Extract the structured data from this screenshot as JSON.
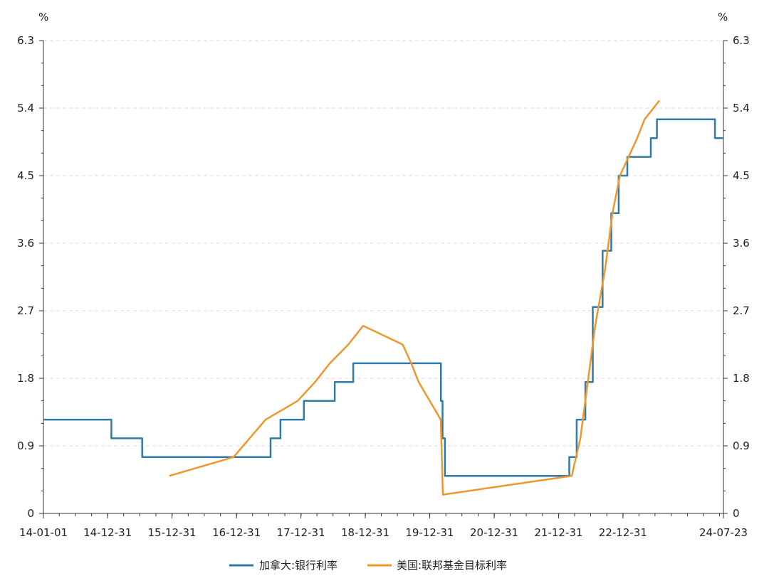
{
  "chart_data": {
    "type": "line",
    "title": "",
    "xlabel": "",
    "ylabel": "%",
    "ylabel_right": "%",
    "ylim": [
      0,
      6.3
    ],
    "yticks": [
      0,
      0.9,
      1.8,
      2.7,
      3.6,
      4.5,
      5.4,
      6.3
    ],
    "ytick_labels": [
      "0",
      "0.9",
      "1.8",
      "2.7",
      "3.6",
      "4.5",
      "5.4",
      "6.3"
    ],
    "xlim": [
      "2014-01-01",
      "2024-07-23"
    ],
    "xticks": [
      {
        "date": "2014-01-01",
        "label": "14-01-01"
      },
      {
        "date": "2014-12-31",
        "label": "14-12-31"
      },
      {
        "date": "2015-12-31",
        "label": "15-12-31"
      },
      {
        "date": "2016-12-31",
        "label": "16-12-31"
      },
      {
        "date": "2017-12-31",
        "label": "17-12-31"
      },
      {
        "date": "2018-12-31",
        "label": "18-12-31"
      },
      {
        "date": "2019-12-31",
        "label": "19-12-31"
      },
      {
        "date": "2020-12-31",
        "label": "20-12-31"
      },
      {
        "date": "2021-12-31",
        "label": "21-12-31"
      },
      {
        "date": "2022-12-31",
        "label": "22-12-31"
      },
      {
        "date": "2024-07-23",
        "label": "24-07-23"
      }
    ],
    "grid": true,
    "legend_position": "bottom",
    "series": [
      {
        "name": "加拿大:银行利率",
        "color": "#2E7BA7",
        "step": true,
        "points": [
          [
            "2014-01-01",
            1.25
          ],
          [
            "2015-01-21",
            1.0
          ],
          [
            "2015-07-15",
            0.75
          ],
          [
            "2017-07-12",
            1.0
          ],
          [
            "2017-09-06",
            1.25
          ],
          [
            "2018-01-17",
            1.5
          ],
          [
            "2018-07-11",
            1.75
          ],
          [
            "2018-10-24",
            2.0
          ],
          [
            "2020-03-04",
            1.5
          ],
          [
            "2020-03-13",
            1.0
          ],
          [
            "2020-03-27",
            0.5
          ],
          [
            "2022-03-02",
            0.75
          ],
          [
            "2022-04-13",
            1.25
          ],
          [
            "2022-06-01",
            1.75
          ],
          [
            "2022-07-13",
            2.75
          ],
          [
            "2022-09-07",
            3.5
          ],
          [
            "2022-10-26",
            4.0
          ],
          [
            "2022-12-07",
            4.5
          ],
          [
            "2023-01-25",
            4.75
          ],
          [
            "2023-06-07",
            5.0
          ],
          [
            "2023-07-12",
            5.25
          ],
          [
            "2024-06-05",
            5.0
          ],
          [
            "2024-07-23",
            5.0
          ]
        ]
      },
      {
        "name": "美国:联邦基金目标利率",
        "color": "#F0962C",
        "step": false,
        "points": [
          [
            "2015-12-16",
            0.5
          ],
          [
            "2016-12-14",
            0.75
          ],
          [
            "2017-03-15",
            1.0
          ],
          [
            "2017-06-14",
            1.25
          ],
          [
            "2017-12-13",
            1.5
          ],
          [
            "2018-03-21",
            1.75
          ],
          [
            "2018-06-13",
            2.0
          ],
          [
            "2018-09-26",
            2.25
          ],
          [
            "2018-12-19",
            2.5
          ],
          [
            "2019-07-31",
            2.25
          ],
          [
            "2019-09-18",
            2.0
          ],
          [
            "2019-10-30",
            1.75
          ],
          [
            "2020-03-03",
            1.25
          ],
          [
            "2020-03-15",
            0.25
          ],
          [
            "2022-03-16",
            0.5
          ],
          [
            "2022-05-04",
            1.0
          ],
          [
            "2022-06-15",
            1.75
          ],
          [
            "2022-07-27",
            2.5
          ],
          [
            "2022-09-21",
            3.25
          ],
          [
            "2022-11-02",
            4.0
          ],
          [
            "2022-12-14",
            4.5
          ],
          [
            "2023-02-01",
            4.75
          ],
          [
            "2023-03-22",
            5.0
          ],
          [
            "2023-05-03",
            5.25
          ],
          [
            "2023-07-26",
            5.5
          ]
        ]
      }
    ]
  }
}
